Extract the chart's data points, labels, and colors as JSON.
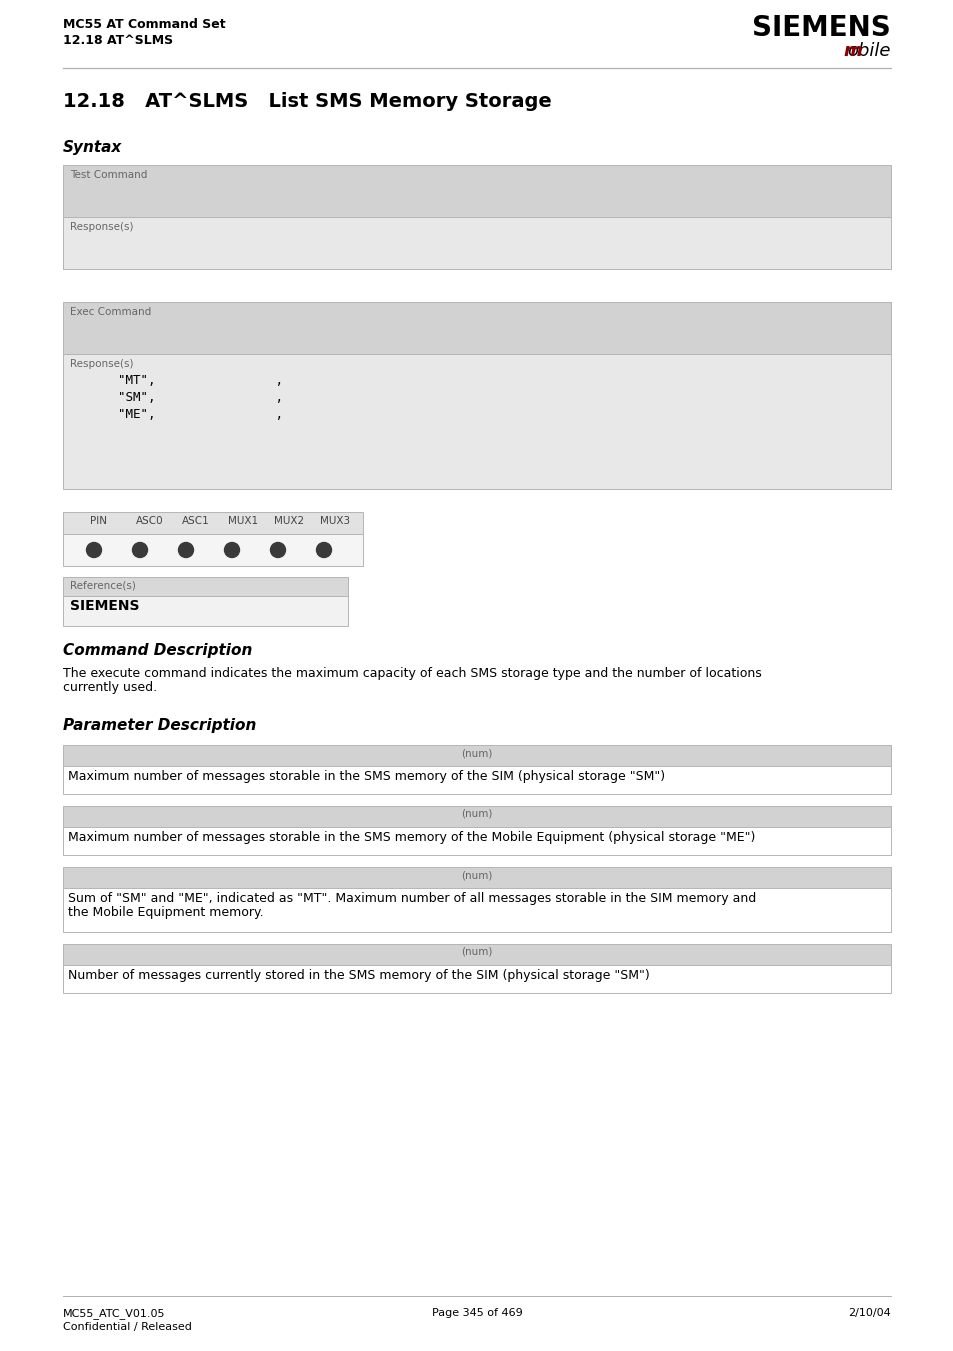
{
  "header_left_line1": "MC55 AT Command Set",
  "header_left_line2": "12.18 AT^SLMS",
  "title": "12.18   AT^SLMS   List SMS Memory Storage",
  "syntax_label": "Syntax",
  "test_command_label": "Test Command",
  "response_label1": "Response(s)",
  "exec_command_label": "Exec Command",
  "response_label2": "Response(s)",
  "response_lines": [
    "\"MT\",                ,",
    "\"SM\",                ,",
    "\"ME\",                ,"
  ],
  "pin_headers": [
    "PIN",
    "ASC0",
    "ASC1",
    "MUX1",
    "MUX2",
    "MUX3"
  ],
  "reference_label": "Reference(s)",
  "reference_value": "SIEMENS",
  "cmd_desc_title": "Command Description",
  "cmd_desc_text1": "The execute command indicates the maximum capacity of each SMS storage type and the number of locations",
  "cmd_desc_text2": "currently used.",
  "param_desc_title": "Parameter Description",
  "param_boxes": [
    {
      "label": "(num)",
      "text": "Maximum number of messages storable in the SMS memory of the SIM (physical storage \"SM\")"
    },
    {
      "label": "(num)",
      "text": "Maximum number of messages storable in the SMS memory of the Mobile Equipment (physical storage \"ME\")"
    },
    {
      "label": "(num)",
      "text1": "Sum of \"SM\" and \"ME\", indicated as \"MT\". Maximum number of all messages storable in the SIM memory and",
      "text2": "the Mobile Equipment memory.",
      "two_lines": true
    },
    {
      "label": "(num)",
      "text": "Number of messages currently stored in the SMS memory of the SIM (physical storage \"SM\")"
    }
  ],
  "footer_left1": "MC55_ATC_V01.05",
  "footer_left2": "Confidential / Released",
  "footer_center": "Page 345 of 469",
  "footer_right": "2/10/04",
  "bg_color": "#ffffff",
  "dark_box_color": "#d2d2d2",
  "light_box_color": "#e8e8e8",
  "param_label_bg": "#d2d2d2",
  "box_border": "#b5b5b5"
}
